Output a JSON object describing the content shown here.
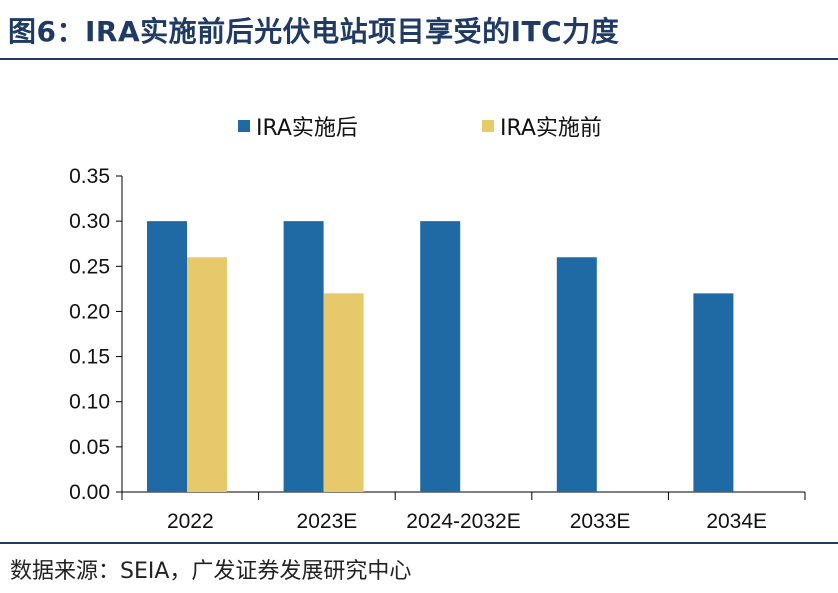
{
  "figure": {
    "title": "图6：IRA实施前后光伏电站项目享受的ITC力度",
    "source": "数据来源：SEIA，广发证券发展研究中心"
  },
  "chart_data": {
    "type": "bar",
    "categories": [
      "2022",
      "2023E",
      "2024-2032E",
      "2033E",
      "2034E"
    ],
    "series": [
      {
        "name": "IRA实施后",
        "color": "#1f6aa5",
        "values": [
          0.3,
          0.3,
          0.3,
          0.26,
          0.22
        ]
      },
      {
        "name": "IRA实施前",
        "color": "#e6c96a",
        "values": [
          0.26,
          0.22,
          null,
          null,
          null
        ]
      }
    ],
    "ylim": [
      0,
      0.35
    ],
    "yticks": [
      "0.00",
      "0.05",
      "0.10",
      "0.15",
      "0.20",
      "0.25",
      "0.30",
      "0.35"
    ],
    "xlabel": "",
    "ylabel": "",
    "legend_position": "top-center",
    "grid": false
  }
}
